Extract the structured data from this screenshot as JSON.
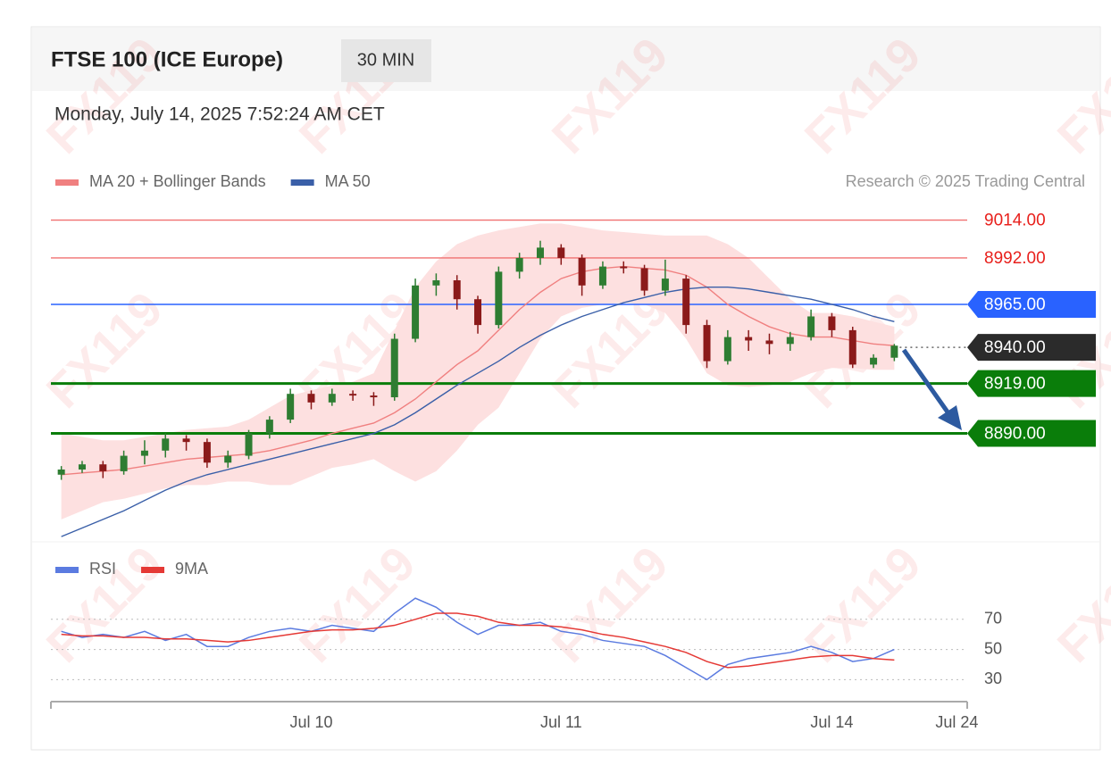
{
  "header": {
    "title": "FTSE 100 (ICE Europe)",
    "timeframe": "30 MIN",
    "date": "Monday, July 14, 2025 7:52:24 AM CET",
    "watermark": "FX119"
  },
  "chart_data": [
    {
      "type": "candlestick",
      "credit": "Research © 2025 Trading Central",
      "categories": [
        null,
        null,
        null,
        null,
        null,
        null,
        null,
        null,
        null,
        null,
        null,
        null,
        "Jul 10",
        null,
        null,
        null,
        null,
        null,
        null,
        null,
        null,
        null,
        null,
        null,
        "Jul 11",
        null,
        null,
        null,
        null,
        null,
        null,
        null,
        null,
        null,
        null,
        null,
        null,
        "Jul 14",
        null,
        null,
        null,
        null,
        null,
        "Jul 24"
      ],
      "ohlc": [
        [
          8866,
          8871,
          8863,
          8869
        ],
        [
          8869,
          8874,
          8867,
          8872
        ],
        [
          8872,
          8874,
          8864,
          8868
        ],
        [
          8868,
          8880,
          8866,
          8877
        ],
        [
          8877,
          8886,
          8872,
          8880
        ],
        [
          8880,
          8890,
          8876,
          8887
        ],
        [
          8887,
          8889,
          8880,
          8885
        ],
        [
          8885,
          8887,
          8870,
          8873
        ],
        [
          8873,
          8880,
          8870,
          8877
        ],
        [
          8877,
          8892,
          8875,
          8890
        ],
        [
          8890,
          8900,
          8887,
          8898
        ],
        [
          8898,
          8916,
          8896,
          8913
        ],
        [
          8913,
          8915,
          8904,
          8908
        ],
        [
          8908,
          8916,
          8906,
          8913
        ],
        [
          8913,
          8915,
          8909,
          8912
        ],
        [
          8912,
          8914,
          8906,
          8911
        ],
        [
          8911,
          8948,
          8909,
          8945
        ],
        [
          8945,
          8980,
          8943,
          8976
        ],
        [
          8976,
          8983,
          8970,
          8979
        ],
        [
          8979,
          8982,
          8962,
          8968
        ],
        [
          8968,
          8970,
          8948,
          8953
        ],
        [
          8953,
          8987,
          8951,
          8984
        ],
        [
          8984,
          8995,
          8980,
          8992
        ],
        [
          8992,
          9002,
          8988,
          8998
        ],
        [
          8998,
          9000,
          8988,
          8992
        ],
        [
          8992,
          8994,
          8970,
          8976
        ],
        [
          8976,
          8990,
          8974,
          8987
        ],
        [
          8987,
          8990,
          8983,
          8986
        ],
        [
          8986,
          8988,
          8970,
          8973
        ],
        [
          8973,
          8991,
          8970,
          8980
        ],
        [
          8980,
          8982,
          8948,
          8953
        ],
        [
          8953,
          8956,
          8928,
          8932
        ],
        [
          8932,
          8950,
          8930,
          8946
        ],
        [
          8946,
          8950,
          8938,
          8944
        ],
        [
          8944,
          8948,
          8936,
          8942
        ],
        [
          8942,
          8949,
          8938,
          8946
        ],
        [
          8946,
          8962,
          8944,
          8958
        ],
        [
          8958,
          8960,
          8946,
          8950
        ],
        [
          8950,
          8952,
          8928,
          8930
        ],
        [
          8930,
          8936,
          8928,
          8934
        ],
        [
          8934,
          8942,
          8932,
          8941
        ],
        null,
        null,
        null
      ],
      "up_color": "#2e7d32",
      "down_color": "#8b1a1a",
      "series": [
        {
          "name": "MA 20 + Bollinger Bands",
          "color": "#f08080",
          "values": [
            8866,
            8867,
            8868,
            8869,
            8871,
            8873,
            8875,
            8876,
            8877,
            8878,
            8880,
            8883,
            8886,
            8890,
            8893,
            8896,
            8902,
            8910,
            8920,
            8930,
            8938,
            8950,
            8962,
            8972,
            8980,
            8984,
            8986,
            8987,
            8986,
            8985,
            8982,
            8975,
            8965,
            8958,
            8952,
            8948,
            8946,
            8946,
            8944,
            8942,
            8941,
            null,
            null,
            null
          ]
        },
        {
          "name": "MA 50",
          "color": "#3a5fa8",
          "values": [
            8830,
            8835,
            8840,
            8845,
            8851,
            8857,
            8862,
            8866,
            8869,
            8872,
            8875,
            8878,
            8881,
            8884,
            8887,
            8890,
            8895,
            8902,
            8910,
            8918,
            8925,
            8932,
            8940,
            8947,
            8953,
            8958,
            8962,
            8966,
            8969,
            8972,
            8974,
            8975,
            8975,
            8974,
            8972,
            8970,
            8968,
            8965,
            8962,
            8958,
            8955,
            null,
            null,
            null
          ]
        }
      ],
      "bands": {
        "color": "#fde0e0",
        "upper": [
          8890,
          8888,
          8886,
          8886,
          8888,
          8890,
          8892,
          8893,
          8894,
          8898,
          8905,
          8912,
          8915,
          8918,
          8920,
          8925,
          8950,
          8975,
          8990,
          9000,
          9005,
          9008,
          9010,
          9012,
          9012,
          9010,
          9008,
          9007,
          9006,
          9005,
          9005,
          9005,
          9000,
          8992,
          8980,
          8968,
          8960,
          8960,
          8958,
          8955,
          8952,
          null,
          null,
          null
        ],
        "lower": [
          8840,
          8845,
          8850,
          8852,
          8855,
          8858,
          8860,
          8860,
          8862,
          8862,
          8860,
          8860,
          8865,
          8870,
          8872,
          8875,
          8868,
          8862,
          8868,
          8880,
          8895,
          8905,
          8925,
          8945,
          8958,
          8963,
          8965,
          8966,
          8965,
          8960,
          8945,
          8925,
          8918,
          8917,
          8918,
          8920,
          8925,
          8928,
          8928,
          8927,
          8927,
          null,
          null,
          null
        ]
      },
      "levels": [
        {
          "value": 9014,
          "label": "9014.00",
          "color": "#f07070",
          "line": "solid",
          "tag": false
        },
        {
          "value": 8992,
          "label": "8992.00",
          "color": "#f07070",
          "line": "solid",
          "tag": false
        },
        {
          "value": 8965,
          "label": "8965.00",
          "color": "#2962ff",
          "line": "solid",
          "tag": true
        },
        {
          "value": 8940,
          "label": "8940.00",
          "color": "#2b2b2b",
          "line": "dotted",
          "tag": true
        },
        {
          "value": 8919,
          "label": "8919.00",
          "color": "#0a7d0a",
          "line": "thick",
          "tag": true
        },
        {
          "value": 8890,
          "label": "8890.00",
          "color": "#0a7d0a",
          "line": "thick",
          "tag": true
        }
      ],
      "ylim": [
        8828,
        9020
      ]
    },
    {
      "type": "line",
      "series": [
        {
          "name": "RSI",
          "color": "#5b7be0",
          "values": [
            62,
            58,
            60,
            58,
            62,
            56,
            60,
            52,
            52,
            58,
            62,
            64,
            62,
            66,
            64,
            62,
            74,
            84,
            78,
            68,
            60,
            66,
            66,
            68,
            62,
            60,
            56,
            54,
            52,
            46,
            38,
            30,
            40,
            44,
            46,
            48,
            52,
            48,
            42,
            44,
            50,
            null,
            null,
            null
          ]
        },
        {
          "name": "9MA",
          "color": "#e53935",
          "values": [
            60,
            59,
            59,
            58,
            58,
            57,
            57,
            56,
            55,
            56,
            58,
            60,
            62,
            63,
            63,
            64,
            66,
            70,
            74,
            74,
            72,
            68,
            66,
            66,
            65,
            63,
            60,
            58,
            55,
            52,
            48,
            42,
            38,
            39,
            41,
            43,
            45,
            46,
            46,
            44,
            43,
            null,
            null,
            null
          ]
        }
      ],
      "ylim": [
        16,
        90
      ],
      "yticks": [
        30,
        50,
        70
      ],
      "grid": true
    }
  ]
}
